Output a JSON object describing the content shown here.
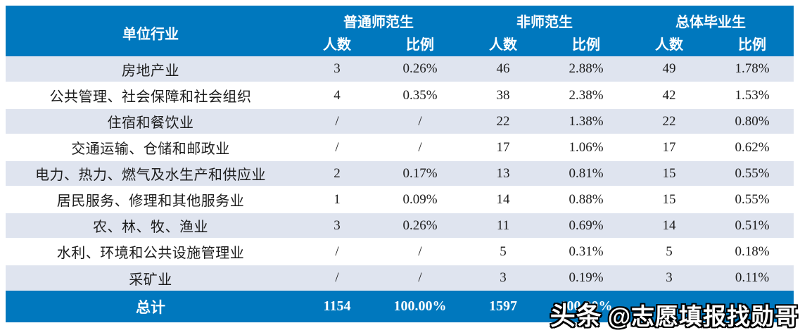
{
  "colors": {
    "header_blue": "#0078BE",
    "row_alt_blue": "#DFE4EF",
    "row_white": "#FFFFFF",
    "header_text": "#FFFFFF",
    "body_text": "#1C1C1C"
  },
  "table": {
    "first_col_header": "单位行业",
    "groups": [
      {
        "label": "普通师范生"
      },
      {
        "label": "非师范生"
      },
      {
        "label": "总体毕业生"
      }
    ],
    "sub_headers": [
      "人数",
      "比例",
      "人数",
      "比例",
      "人数",
      "比例"
    ],
    "rows": [
      {
        "industry": "房地产业",
        "cells": [
          "3",
          "0.26%",
          "46",
          "2.88%",
          "49",
          "1.78%"
        ]
      },
      {
        "industry": "公共管理、社会保障和社会组织",
        "cells": [
          "4",
          "0.35%",
          "38",
          "2.38%",
          "42",
          "1.53%"
        ]
      },
      {
        "industry": "住宿和餐饮业",
        "cells": [
          "/",
          "/",
          "22",
          "1.38%",
          "22",
          "0.80%"
        ]
      },
      {
        "industry": "交通运输、仓储和邮政业",
        "cells": [
          "/",
          "/",
          "17",
          "1.06%",
          "17",
          "0.62%"
        ]
      },
      {
        "industry": "电力、热力、燃气及水生产和供应业",
        "cells": [
          "2",
          "0.17%",
          "13",
          "0.81%",
          "15",
          "0.55%"
        ]
      },
      {
        "industry": "居民服务、修理和其他服务业",
        "cells": [
          "1",
          "0.09%",
          "14",
          "0.88%",
          "15",
          "0.55%"
        ]
      },
      {
        "industry": "农、林、牧、渔业",
        "cells": [
          "3",
          "0.26%",
          "11",
          "0.69%",
          "14",
          "0.51%"
        ]
      },
      {
        "industry": "水利、环境和公共设施管理业",
        "cells": [
          "/",
          "/",
          "5",
          "0.31%",
          "5",
          "0.18%"
        ]
      },
      {
        "industry": "采矿业",
        "cells": [
          "/",
          "/",
          "3",
          "0.19%",
          "3",
          "0.11%"
        ]
      }
    ],
    "total_row": {
      "label": "总计",
      "cells": [
        "1154",
        "100.00%",
        "1597",
        "100.00%",
        "",
        ""
      ]
    }
  },
  "watermark": {
    "prefix": "头条",
    "handle": "@志愿填报找勋哥"
  }
}
